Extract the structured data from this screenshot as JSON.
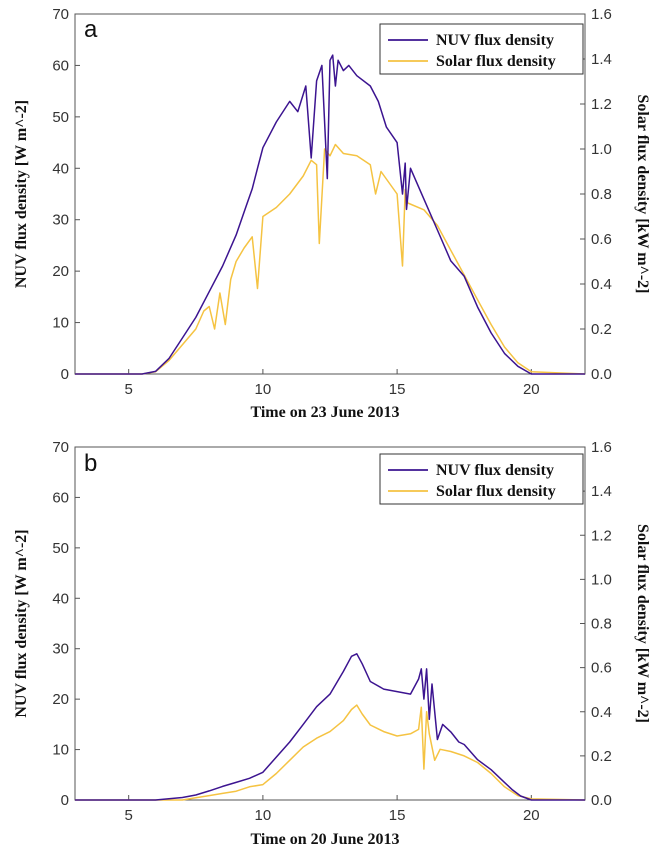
{
  "chart_data": [
    {
      "type": "line",
      "panel": "a",
      "xlabel": "Time on 23 June 2013",
      "ylabel": "NUV flux density [W m^-2]",
      "y2label": "Solar flux density [kW m^-2]",
      "xlim": [
        3,
        22
      ],
      "ylim": [
        0,
        70
      ],
      "y2lim": [
        0,
        1.6
      ],
      "xticks": [
        "5",
        "10",
        "15",
        "20"
      ],
      "yticks": [
        "0",
        "10",
        "20",
        "30",
        "40",
        "50",
        "60",
        "70"
      ],
      "y2ticks": [
        "0.0",
        "0.2",
        "0.4",
        "0.6",
        "0.8",
        "1.0",
        "1.2",
        "1.4",
        "1.6"
      ],
      "legend_position": "top-right",
      "colors": {
        "nuv": "#3c1490",
        "solar": "#f5c342"
      },
      "series": [
        {
          "name": "NUV flux density",
          "axis": "left",
          "x": [
            3,
            5.5,
            6.0,
            6.5,
            7.0,
            7.5,
            8.0,
            8.5,
            9.0,
            9.4,
            9.6,
            9.8,
            10.0,
            10.5,
            11.0,
            11.3,
            11.6,
            11.8,
            12.0,
            12.2,
            12.4,
            12.5,
            12.6,
            12.7,
            12.8,
            13.0,
            13.2,
            13.5,
            14.0,
            14.3,
            14.6,
            15.0,
            15.2,
            15.3,
            15.35,
            15.5,
            16.0,
            16.5,
            17.0,
            17.5,
            18.0,
            18.5,
            19.0,
            19.5,
            20.0,
            20.5,
            22
          ],
          "y": [
            0,
            0,
            0.5,
            3,
            7,
            11,
            16,
            21,
            27,
            33,
            36,
            40,
            44,
            49,
            53,
            51,
            56,
            42,
            57,
            60,
            38,
            61,
            62,
            56,
            61,
            59,
            60,
            58,
            56,
            53,
            48,
            45,
            35,
            41,
            32,
            40,
            34,
            28,
            22,
            19,
            13,
            8,
            4,
            1.5,
            0,
            0,
            0
          ]
        },
        {
          "name": "Solar flux density",
          "axis": "right",
          "x": [
            3,
            5.5,
            6.0,
            6.5,
            7.0,
            7.5,
            7.8,
            8.0,
            8.2,
            8.4,
            8.6,
            8.8,
            9.0,
            9.3,
            9.6,
            9.8,
            10.0,
            10.5,
            11.0,
            11.5,
            11.8,
            12.0,
            12.1,
            12.3,
            12.5,
            12.7,
            13.0,
            13.5,
            14.0,
            14.2,
            14.4,
            15.0,
            15.2,
            15.3,
            15.4,
            16.0,
            16.5,
            17.0,
            17.5,
            18.0,
            18.5,
            19.0,
            19.5,
            20.0,
            22
          ],
          "y": [
            0,
            0,
            0.01,
            0.06,
            0.13,
            0.2,
            0.28,
            0.3,
            0.2,
            0.36,
            0.22,
            0.42,
            0.5,
            0.56,
            0.61,
            0.38,
            0.7,
            0.74,
            0.8,
            0.88,
            0.95,
            0.93,
            0.58,
            1.0,
            0.97,
            1.02,
            0.98,
            0.97,
            0.93,
            0.8,
            0.9,
            0.8,
            0.48,
            0.82,
            0.76,
            0.73,
            0.66,
            0.55,
            0.44,
            0.33,
            0.22,
            0.12,
            0.05,
            0.01,
            0
          ]
        }
      ]
    },
    {
      "type": "line",
      "panel": "b",
      "xlabel": "Time on 20 June 2013",
      "ylabel": "NUV flux density [W m^-2]",
      "y2label": "Solar flux density [kW m^-2]",
      "xlim": [
        3,
        22
      ],
      "ylim": [
        0,
        70
      ],
      "y2lim": [
        0,
        1.6
      ],
      "xticks": [
        "5",
        "10",
        "15",
        "20"
      ],
      "yticks": [
        "0",
        "10",
        "20",
        "30",
        "40",
        "50",
        "60",
        "70"
      ],
      "y2ticks": [
        "0.0",
        "0.2",
        "0.4",
        "0.6",
        "0.8",
        "1.0",
        "1.2",
        "1.4",
        "1.6"
      ],
      "legend_position": "top-right",
      "colors": {
        "nuv": "#3c1490",
        "solar": "#f5c342"
      },
      "series": [
        {
          "name": "NUV flux density",
          "axis": "left",
          "x": [
            3,
            6.0,
            7.0,
            7.5,
            8.0,
            8.5,
            9.0,
            9.5,
            10.0,
            10.5,
            11.0,
            11.5,
            12.0,
            12.5,
            13.0,
            13.3,
            13.5,
            13.7,
            14.0,
            14.5,
            15.0,
            15.5,
            15.8,
            15.9,
            16.0,
            16.1,
            16.2,
            16.3,
            16.5,
            16.7,
            17.0,
            17.3,
            17.5,
            18.0,
            18.5,
            19.0,
            19.3,
            19.6,
            20.0,
            22
          ],
          "y": [
            0,
            0,
            0.5,
            1,
            1.8,
            2.7,
            3.5,
            4.3,
            5.5,
            8.5,
            11.5,
            15,
            18.5,
            21,
            25.5,
            28.5,
            29,
            27,
            23.5,
            22,
            21.5,
            21,
            24,
            26,
            20,
            26,
            16,
            23,
            12,
            15,
            13.5,
            11.5,
            11,
            8,
            6,
            3.5,
            2,
            0.8,
            0,
            0
          ]
        },
        {
          "name": "Solar flux density",
          "axis": "right",
          "x": [
            3,
            7.0,
            7.5,
            8.0,
            8.5,
            9.0,
            9.5,
            10.0,
            10.5,
            11.0,
            11.5,
            12.0,
            12.5,
            13.0,
            13.3,
            13.5,
            13.7,
            14.0,
            14.5,
            15.0,
            15.5,
            15.8,
            15.9,
            16.0,
            16.1,
            16.2,
            16.4,
            16.6,
            17.0,
            17.5,
            18.0,
            18.5,
            19.0,
            19.5,
            20.0,
            22
          ],
          "y": [
            0,
            0,
            0.01,
            0.02,
            0.03,
            0.04,
            0.06,
            0.07,
            0.12,
            0.18,
            0.24,
            0.28,
            0.31,
            0.36,
            0.41,
            0.43,
            0.39,
            0.34,
            0.31,
            0.29,
            0.3,
            0.32,
            0.42,
            0.14,
            0.4,
            0.3,
            0.18,
            0.23,
            0.22,
            0.2,
            0.17,
            0.12,
            0.06,
            0.02,
            0.005,
            0
          ]
        }
      ]
    }
  ]
}
